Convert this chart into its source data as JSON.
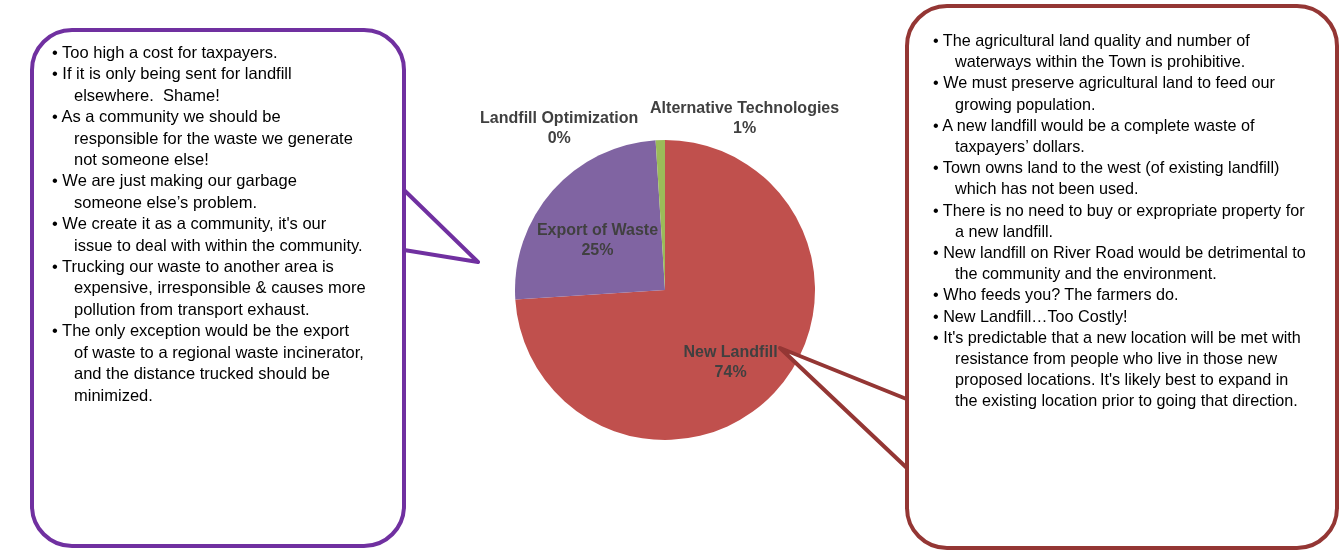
{
  "chart_data": {
    "type": "pie",
    "categories": [
      "New Landfill",
      "Export of Waste",
      "Landfill Optimization",
      "Alternative Technologies"
    ],
    "values": [
      74,
      25,
      0,
      1
    ],
    "value_labels": [
      "74%",
      "25%",
      "0%",
      "1%"
    ],
    "colors": [
      "#c0504d",
      "#8064a2",
      "#4f81bd",
      "#9bbb59"
    ],
    "legend": false,
    "annotations": [
      "• Too high a cost for taxpayers.\n• If it is only being sent for landfill elsewhere.  Shame!\n• As a community we should be responsible for the waste we generate not someone else!\n• We are just making our garbage someone else’s problem.\n• We create it as a community, it's our issue to deal with within the community.\n• Trucking our waste to another area is expensive, irresponsible & causes more pollution from transport exhaust.\n• The only exception would be the export of waste to a regional waste incinerator, and the distance trucked should be minimized.",
      "• The agricultural land quality and number of waterways within the Town is prohibitive.\n• We must preserve agricultural land to feed our growing population.\n• A new landfill would be a complete waste of taxpayers’ dollars.\n• Town owns land to the west (of existing landfill) which has not been used.\n• There is no need to buy or expropriate property for a new landfill.\n• New landfill on River Road would be detrimental to the community and the environment.\n• Who feeds you? The farmers do.\n• New Landfill…Too Costly!\n• It's predictable that a new location will be met with resistance from people who live in those new proposed locations. It's likely best to expand in the existing location prior to going that direction."
    ]
  }
}
